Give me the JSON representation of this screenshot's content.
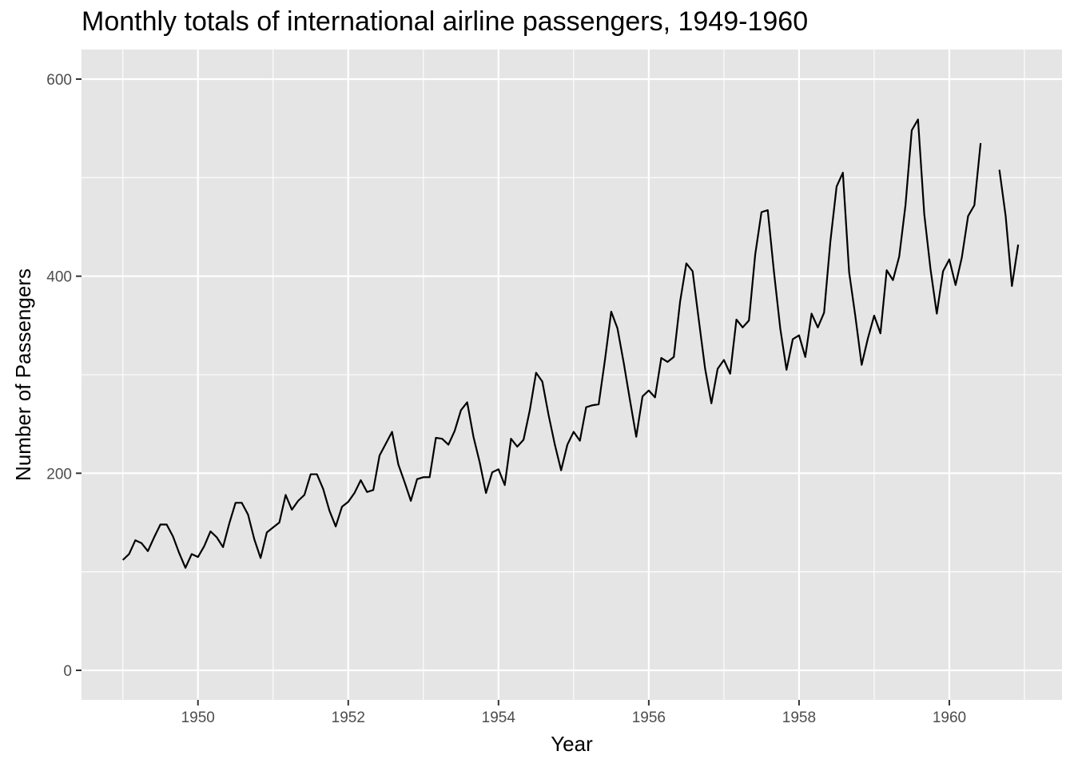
{
  "chart_data": {
    "type": "line",
    "title": "Monthly totals of international airline passengers, 1949-1960",
    "xlabel": "Year",
    "ylabel": "Number of Passengers",
    "xlim": [
      1948.45,
      1961.5
    ],
    "ylim": [
      -30,
      630
    ],
    "x_ticks": [
      1950,
      1952,
      1954,
      1956,
      1958,
      1960
    ],
    "x_tick_labels": [
      "1950",
      "1952",
      "1954",
      "1956",
      "1958",
      "1960"
    ],
    "y_ticks": [
      0,
      200,
      400,
      600
    ],
    "y_tick_labels": [
      "0",
      "200",
      "400",
      "600"
    ],
    "grid": true,
    "panel_background": "#e5e5e5",
    "grid_color": "#ffffff",
    "line_color": "#000000",
    "x_start": 1949.0,
    "x_step": 0.0833333,
    "series": [
      {
        "values": [
          112,
          118,
          132,
          129,
          121,
          135,
          148,
          148,
          136,
          119,
          104,
          118,
          115,
          126,
          141,
          135,
          125,
          149,
          170,
          170,
          158,
          133,
          114,
          140,
          145,
          150,
          178,
          163,
          172,
          178,
          199,
          199,
          184,
          162,
          146,
          166,
          171,
          180,
          193,
          181,
          183,
          218,
          230,
          242,
          209,
          191,
          172,
          194,
          196,
          196,
          236,
          235,
          229,
          243,
          264,
          272,
          237,
          211,
          180,
          201,
          204,
          188,
          235,
          227,
          234,
          264,
          302,
          293,
          259,
          229,
          203,
          229,
          242,
          233,
          267,
          269,
          270,
          315,
          364,
          347,
          312,
          274,
          237,
          278,
          284,
          277,
          317,
          313,
          318,
          374,
          413,
          405,
          355,
          306,
          271,
          306,
          315,
          301,
          356,
          348,
          355,
          422,
          465,
          467,
          404,
          347,
          305,
          336,
          340,
          318,
          362,
          348,
          363,
          435,
          491,
          505,
          404,
          359,
          310,
          337,
          360,
          342,
          406,
          396,
          420,
          472,
          548,
          559,
          463,
          407,
          362,
          405,
          417,
          391,
          419,
          461,
          472,
          535,
          null,
          null,
          508,
          461,
          390,
          432
        ]
      }
    ]
  }
}
